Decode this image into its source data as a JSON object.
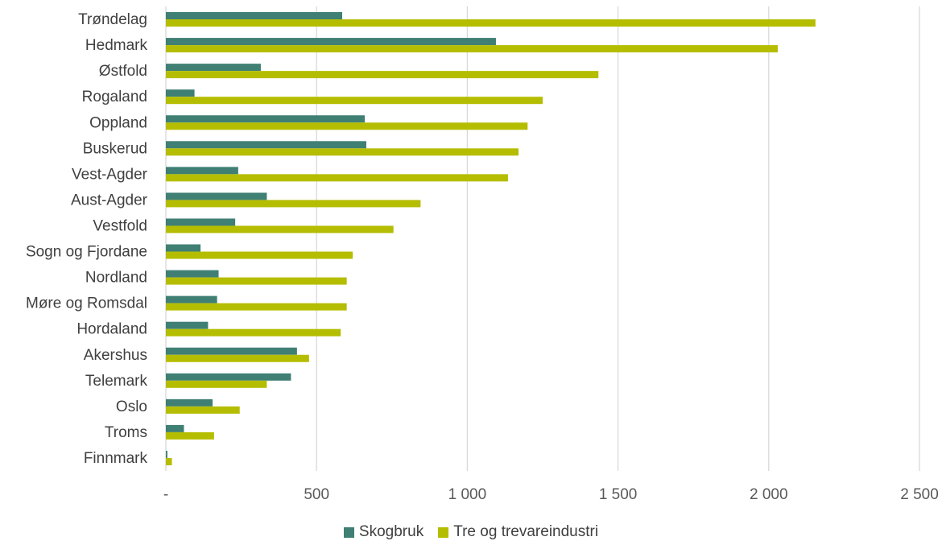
{
  "chart_data": {
    "type": "bar",
    "orientation": "horizontal",
    "categories": [
      "Trøndelag",
      "Hedmark",
      "Østfold",
      "Rogaland",
      "Oppland",
      "Buskerud",
      "Vest-Agder",
      "Aust-Agder",
      "Vestfold",
      "Sogn og Fjordane",
      "Nordland",
      "Møre og Romsdal",
      "Hordaland",
      "Akershus",
      "Telemark",
      "Oslo",
      "Troms",
      "Finnmark"
    ],
    "series": [
      {
        "name": "Skogbruk",
        "color": "#3f7f74",
        "values": [
          585,
          1095,
          315,
          95,
          660,
          665,
          240,
          335,
          230,
          115,
          175,
          170,
          140,
          435,
          415,
          155,
          60,
          5
        ]
      },
      {
        "name": "Tre og trevareindustri",
        "color": "#b5bd00",
        "values": [
          2155,
          2030,
          1435,
          1250,
          1200,
          1170,
          1135,
          845,
          755,
          620,
          600,
          600,
          580,
          475,
          335,
          245,
          160,
          20
        ]
      }
    ],
    "xlim": [
      0,
      2500
    ],
    "xticks": [
      0,
      500,
      1000,
      1500,
      2000,
      2500
    ],
    "xtick_labels": [
      "-",
      "500",
      "1 000",
      "1 500",
      "2 000",
      "2 500"
    ],
    "grid": "vertical",
    "legend_position": "bottom"
  }
}
